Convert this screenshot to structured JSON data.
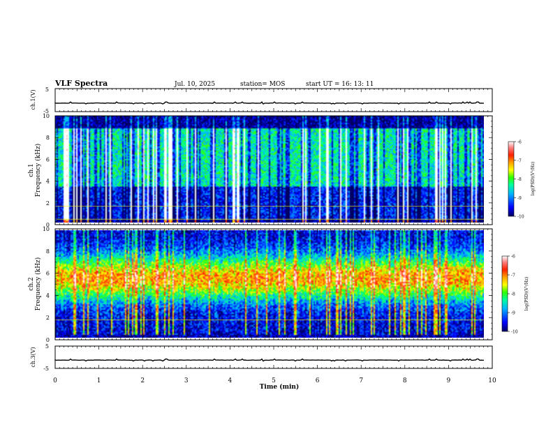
{
  "header": {
    "title": "VLF Spectra",
    "date": "Jul. 10, 2025",
    "station": "station= MOS",
    "start": "start UT =  16: 13: 11"
  },
  "chart_data": [
    {
      "type": "line",
      "name": "ch1-waveform",
      "ylabel": "ch.1(V)",
      "ylim": [
        -5,
        5
      ],
      "yticks": [
        "5",
        "-5"
      ],
      "xlim": [
        0,
        10
      ],
      "level": -1.3
    },
    {
      "type": "heatmap",
      "name": "ch1-spectrogram",
      "ylabel": "ch.1\nFrequency (kHz)",
      "ylim": [
        0,
        10
      ],
      "yticks": [
        "0",
        "2",
        "4",
        "6",
        "8",
        "10"
      ],
      "xlim": [
        0,
        9.83
      ],
      "colorbar": {
        "label": "log(PSD)(V²/Hz)",
        "range": [
          -10,
          -6
        ],
        "ticks": [
          "-6",
          "-7",
          "-8",
          "-9",
          "-10"
        ]
      },
      "reference_lines_khz": [
        0.5,
        1.7
      ]
    },
    {
      "type": "heatmap",
      "name": "ch2-spectrogram",
      "ylabel": "ch.2\nFrequency (kHz)",
      "ylim": [
        0,
        10
      ],
      "yticks": [
        "0",
        "2",
        "4",
        "6",
        "8",
        "10"
      ],
      "xlim": [
        0,
        9.83
      ],
      "colorbar": {
        "label": "log(PSD)(V²/Hz)",
        "range": [
          -10,
          -6
        ],
        "ticks": [
          "-6",
          "-7",
          "-8",
          "-9",
          "-10"
        ]
      },
      "reference_lines_khz": [
        1.8
      ]
    },
    {
      "type": "line",
      "name": "ch3-waveform",
      "ylabel": "ch.3(V)",
      "ylim": [
        -5,
        5
      ],
      "yticks": [
        "5",
        "-5"
      ],
      "xlim": [
        0,
        10
      ],
      "level": -1.3
    }
  ],
  "xaxis": {
    "label": "Time (min)",
    "ticks": [
      "0",
      "1",
      "2",
      "3",
      "4",
      "5",
      "6",
      "7",
      "8",
      "9",
      "10"
    ],
    "range": [
      0,
      10
    ]
  }
}
